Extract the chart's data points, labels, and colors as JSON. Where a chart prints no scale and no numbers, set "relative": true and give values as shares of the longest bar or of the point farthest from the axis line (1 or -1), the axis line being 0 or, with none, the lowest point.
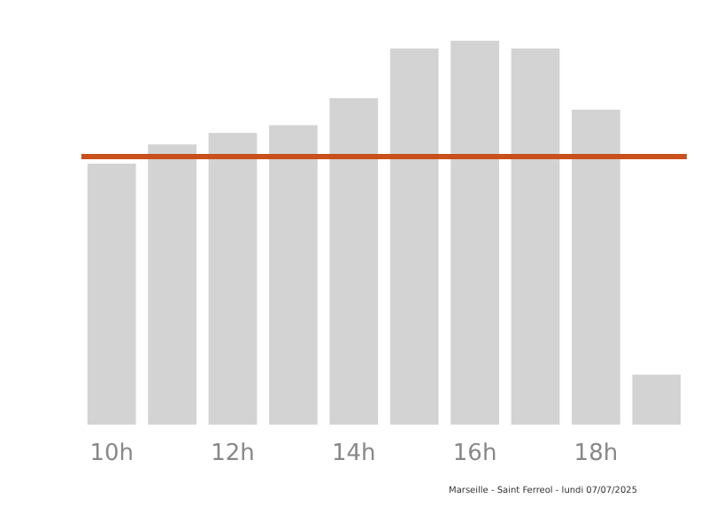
{
  "chart_data": {
    "type": "bar",
    "relative": true,
    "categories": [
      "10h",
      null,
      "12h",
      null,
      "14h",
      null,
      "16h",
      null,
      "18h",
      null
    ],
    "values": [
      0.68,
      0.73,
      0.76,
      0.78,
      0.85,
      0.98,
      1,
      0.98,
      0.82,
      0.13
    ],
    "color": "#d3d3d4",
    "ref_lines": [
      {
        "axis": "y",
        "value": 0.7,
        "label": null,
        "color": "#c8501a"
      }
    ],
    "annotations": [
      "Marseille - Saint Ferreol - lundi 07/07/2025"
    ]
  }
}
